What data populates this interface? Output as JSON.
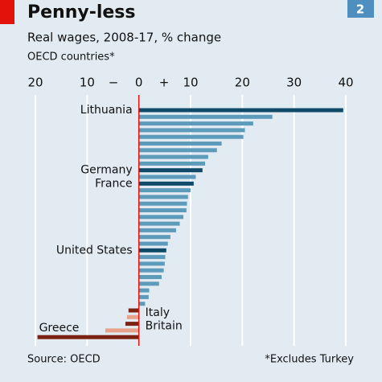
{
  "chart_data": {
    "type": "hbar",
    "title": "Penny-less",
    "badge": "2",
    "subtitle": "Real wages, 2008-17, % change",
    "note": "OECD countries*",
    "source": "Source: OECD",
    "footnote": "*Excludes Turkey",
    "sign_labels": [
      "−",
      "+"
    ],
    "categories": [
      "Lithuania",
      null,
      null,
      null,
      null,
      null,
      null,
      null,
      null,
      "Germany",
      null,
      "France",
      null,
      null,
      null,
      null,
      null,
      null,
      null,
      null,
      null,
      "United States",
      null,
      null,
      null,
      null,
      null,
      null,
      null,
      null,
      "Italy",
      null,
      "Britain",
      null,
      "Greece"
    ],
    "values": [
      39.5,
      25.8,
      22.1,
      20.5,
      20.2,
      16,
      15.1,
      13.4,
      12.8,
      12.3,
      11,
      10.6,
      10,
      9.5,
      9.3,
      9.2,
      8.6,
      7.9,
      7.2,
      6.1,
      5.6,
      5.3,
      5.1,
      5,
      4.8,
      4.4,
      3.9,
      2,
      1.9,
      1.2,
      -2,
      -2.3,
      -2.6,
      -6.5,
      -19.6
    ],
    "colors": {
      "positive": "#5d9bbb",
      "positive_highlight": "#0f4b69",
      "negative": "#e8a28b",
      "negative_highlight": "#7b2212"
    },
    "xlim": [
      -20,
      40
    ],
    "xticks": [
      {
        "value": -20,
        "label": "20"
      },
      {
        "value": -10,
        "label": "10"
      },
      0,
      10,
      20,
      30,
      40
    ],
    "grid": true
  }
}
